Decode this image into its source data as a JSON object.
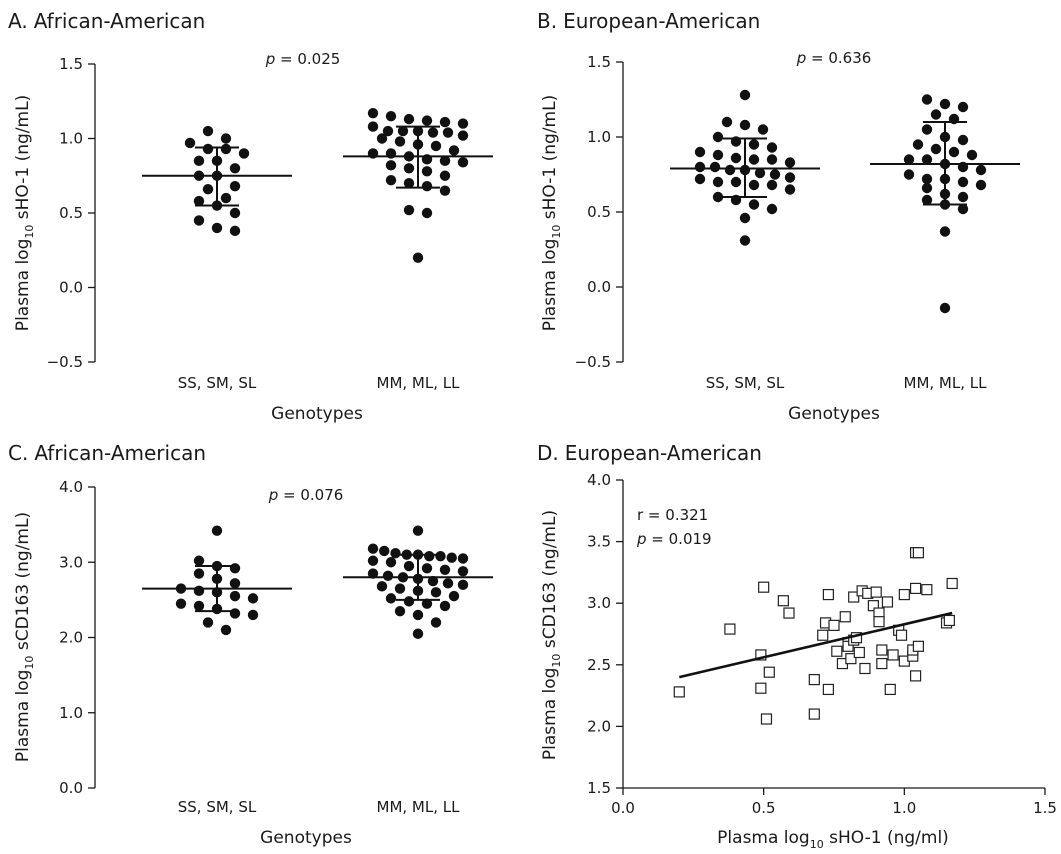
{
  "chart_data": [
    {
      "id": "A",
      "type": "scatter",
      "panel_letter": "A.",
      "title": "African-American",
      "ylabel": {
        "pre": "Plasma log",
        "sub": "10",
        "post": " sHO-1 (ng/mL)"
      },
      "xlabel": "Genotypes",
      "ylim": [
        -0.5,
        1.5
      ],
      "yticks": [
        "1.5",
        "1.0",
        "0.5",
        "0.0",
        "−0.5"
      ],
      "ytick_values": [
        1.5,
        1.0,
        0.5,
        0.0,
        -0.5
      ],
      "categories": [
        "SS, SM, SL",
        "MM, ML, LL"
      ],
      "pvalue": {
        "p": "p",
        "text": " = 0.025"
      },
      "summary": [
        {
          "mean": 0.75,
          "sd_low": 0.55,
          "sd_high": 0.94
        },
        {
          "mean": 0.88,
          "sd_low": 0.67,
          "sd_high": 1.08
        }
      ],
      "series": [
        {
          "values": [
            1.05,
            1.0,
            0.97,
            0.93,
            0.93,
            0.9,
            0.85,
            0.85,
            0.8,
            0.75,
            0.75,
            0.68,
            0.66,
            0.6,
            0.58,
            0.55,
            0.5,
            0.45,
            0.4,
            0.38
          ]
        },
        {
          "values": [
            1.17,
            1.15,
            1.13,
            1.12,
            1.11,
            1.1,
            1.08,
            1.05,
            1.05,
            1.05,
            1.04,
            1.04,
            1.02,
            1.0,
            0.98,
            0.96,
            0.95,
            0.92,
            0.9,
            0.9,
            0.88,
            0.86,
            0.85,
            0.84,
            0.82,
            0.8,
            0.78,
            0.75,
            0.72,
            0.7,
            0.68,
            0.65,
            0.52,
            0.5,
            0.2
          ]
        }
      ]
    },
    {
      "id": "B",
      "type": "scatter",
      "panel_letter": "B.",
      "title": "European-American",
      "ylabel": {
        "pre": "Plasma log",
        "sub": "10",
        "post": " sHO-1 (ng/mL)"
      },
      "xlabel": "Genotypes",
      "ylim": [
        -0.5,
        1.5
      ],
      "yticks": [
        "1.5",
        "1.0",
        "0.5",
        "0.0",
        "−0.5"
      ],
      "ytick_values": [
        1.5,
        1.0,
        0.5,
        0.0,
        -0.5
      ],
      "categories": [
        "SS, SM, SL",
        "MM, ML, LL"
      ],
      "pvalue": {
        "p": "p",
        "text": " = 0.636"
      },
      "summary": [
        {
          "mean": 0.79,
          "sd_low": 0.6,
          "sd_high": 0.99
        },
        {
          "mean": 0.82,
          "sd_low": 0.55,
          "sd_high": 1.1
        }
      ],
      "series": [
        {
          "values": [
            1.28,
            1.1,
            1.08,
            1.05,
            1.0,
            0.97,
            0.95,
            0.93,
            0.9,
            0.88,
            0.86,
            0.85,
            0.85,
            0.83,
            0.8,
            0.8,
            0.78,
            0.78,
            0.76,
            0.75,
            0.73,
            0.72,
            0.7,
            0.7,
            0.68,
            0.68,
            0.65,
            0.6,
            0.58,
            0.55,
            0.52,
            0.46,
            0.31
          ]
        },
        {
          "values": [
            1.25,
            1.22,
            1.2,
            1.15,
            1.12,
            1.05,
            1.0,
            0.98,
            0.95,
            0.92,
            0.9,
            0.88,
            0.85,
            0.85,
            0.82,
            0.8,
            0.78,
            0.75,
            0.72,
            0.72,
            0.7,
            0.68,
            0.66,
            0.62,
            0.6,
            0.58,
            0.55,
            0.52,
            0.37,
            -0.14
          ]
        }
      ]
    },
    {
      "id": "C",
      "type": "scatter",
      "panel_letter": "C.",
      "title": "African-American",
      "ylabel": {
        "pre": "Plasma log",
        "sub": "10",
        "post": " sCD163 (ng/mL)"
      },
      "xlabel": "Genotypes",
      "ylim": [
        0.0,
        4.0
      ],
      "yticks": [
        "4.0",
        "3.0",
        "2.0",
        "1.0",
        "0.0"
      ],
      "ytick_values": [
        4.0,
        3.0,
        2.0,
        1.0,
        0.0
      ],
      "categories": [
        "SS, SM, SL",
        "MM, ML, LL"
      ],
      "pvalue": {
        "p": "p",
        "text": " = 0.076"
      },
      "summary": [
        {
          "mean": 2.65,
          "sd_low": 2.35,
          "sd_high": 2.95
        },
        {
          "mean": 2.8,
          "sd_low": 2.5,
          "sd_high": 3.1
        }
      ],
      "series": [
        {
          "values": [
            3.42,
            3.02,
            2.95,
            2.92,
            2.85,
            2.78,
            2.72,
            2.65,
            2.62,
            2.6,
            2.55,
            2.52,
            2.45,
            2.42,
            2.38,
            2.32,
            2.3,
            2.2,
            2.1
          ]
        },
        {
          "values": [
            3.42,
            3.18,
            3.15,
            3.12,
            3.1,
            3.1,
            3.08,
            3.08,
            3.06,
            3.05,
            3.02,
            3.0,
            2.95,
            2.92,
            2.9,
            2.88,
            2.85,
            2.82,
            2.8,
            2.78,
            2.75,
            2.72,
            2.7,
            2.68,
            2.65,
            2.62,
            2.6,
            2.55,
            2.52,
            2.48,
            2.45,
            2.42,
            2.35,
            2.3,
            2.2,
            2.05
          ]
        }
      ]
    },
    {
      "id": "D",
      "type": "scatter",
      "panel_letter": "D.",
      "title": "European-American",
      "ylabel": {
        "pre": "Plasma log",
        "sub": "10",
        "post": " sCD163 (ng/mL)"
      },
      "xlabel": {
        "pre": "Plasma log",
        "sub": "10",
        "post": " sHO-1 (ng/ml)"
      },
      "xlim": [
        0.0,
        1.5
      ],
      "ylim": [
        1.5,
        4.0
      ],
      "xticks": [
        "0.0",
        "0.5",
        "1.0",
        "1.5"
      ],
      "xtick_values": [
        0.0,
        0.5,
        1.0,
        1.5
      ],
      "yticks": [
        "4.0",
        "3.5",
        "3.0",
        "2.5",
        "2.0",
        "1.5"
      ],
      "ytick_values": [
        4.0,
        3.5,
        3.0,
        2.5,
        2.0,
        1.5
      ],
      "stats": {
        "r_label": "r  = 0.321",
        "p": "p",
        "p_text": " = 0.019"
      },
      "regression": {
        "x": [
          0.2,
          1.17
        ],
        "y": [
          2.4,
          2.92
        ]
      },
      "points": [
        [
          0.2,
          2.28
        ],
        [
          0.38,
          2.79
        ],
        [
          0.49,
          2.31
        ],
        [
          0.49,
          2.58
        ],
        [
          0.5,
          3.13
        ],
        [
          0.51,
          2.06
        ],
        [
          0.52,
          2.44
        ],
        [
          0.57,
          3.02
        ],
        [
          0.59,
          2.92
        ],
        [
          0.68,
          2.1
        ],
        [
          0.68,
          2.38
        ],
        [
          0.71,
          2.74
        ],
        [
          0.72,
          2.84
        ],
        [
          0.73,
          3.07
        ],
        [
          0.73,
          2.3
        ],
        [
          0.75,
          2.82
        ],
        [
          0.76,
          2.61
        ],
        [
          0.78,
          2.51
        ],
        [
          0.79,
          2.89
        ],
        [
          0.8,
          2.68
        ],
        [
          0.8,
          2.65
        ],
        [
          0.81,
          2.55
        ],
        [
          0.82,
          2.7
        ],
        [
          0.82,
          3.05
        ],
        [
          0.83,
          2.72
        ],
        [
          0.84,
          2.6
        ],
        [
          0.85,
          3.1
        ],
        [
          0.86,
          2.47
        ],
        [
          0.87,
          3.08
        ],
        [
          0.89,
          2.98
        ],
        [
          0.9,
          3.09
        ],
        [
          0.91,
          2.92
        ],
        [
          0.91,
          2.85
        ],
        [
          0.92,
          2.62
        ],
        [
          0.92,
          2.51
        ],
        [
          0.94,
          3.01
        ],
        [
          0.95,
          2.3
        ],
        [
          0.96,
          2.58
        ],
        [
          0.98,
          2.78
        ],
        [
          0.99,
          2.74
        ],
        [
          1.0,
          3.07
        ],
        [
          1.0,
          2.53
        ],
        [
          1.03,
          2.57
        ],
        [
          1.03,
          2.62
        ],
        [
          1.04,
          3.12
        ],
        [
          1.04,
          3.41
        ],
        [
          1.04,
          2.41
        ],
        [
          1.05,
          3.41
        ],
        [
          1.05,
          2.65
        ],
        [
          1.08,
          3.11
        ],
        [
          1.15,
          2.84
        ],
        [
          1.16,
          2.86
        ],
        [
          1.17,
          3.16
        ]
      ]
    }
  ]
}
